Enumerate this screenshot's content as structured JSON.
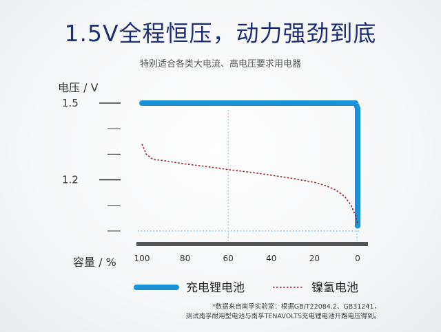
{
  "header": {
    "title": "1.5V全程恒压，动力强劲到底",
    "subtitle": "特别适合各类大电流、高电压要求用电器"
  },
  "footnote": {
    "line1": "*数据来自南孚实验室：根据GB/T22084.2、GB31241，",
    "line2": "测试南孚耐用型电池与南孚TENAVOLTS充电锂电池开路电压得到。"
  },
  "chart_data": {
    "type": "line",
    "ylabel": "电压 / V",
    "xlabel": "容量 / %",
    "x_reversed": true,
    "xlim": [
      100,
      0
    ],
    "x_ticks": [
      100,
      80,
      60,
      40,
      20,
      0
    ],
    "y_ticks": [
      {
        "value": 1.5,
        "label": "1.5"
      },
      {
        "value": 1.4,
        "label": ""
      },
      {
        "value": 1.3,
        "label": ""
      },
      {
        "value": 1.2,
        "label": "1.2"
      },
      {
        "value": 1.1,
        "label": ""
      },
      {
        "value": 1.0,
        "label": ""
      }
    ],
    "ylim": [
      0.95,
      1.55
    ],
    "grid": "dotted horizontal at 1.0 and vertical at 60 and 0",
    "legend_position": "bottom",
    "series": [
      {
        "name": "充电锂电池",
        "color": "#1a93d8",
        "style": "solid",
        "points": [
          [
            100,
            1.5
          ],
          [
            80,
            1.5
          ],
          [
            60,
            1.5
          ],
          [
            40,
            1.5
          ],
          [
            20,
            1.5
          ],
          [
            1,
            1.5
          ],
          [
            0,
            1.48
          ],
          [
            0,
            1.02
          ]
        ]
      },
      {
        "name": "镍氢电池",
        "color": "#a21d25",
        "style": "dotted",
        "points": [
          [
            100,
            1.34
          ],
          [
            98,
            1.3
          ],
          [
            95,
            1.28
          ],
          [
            90,
            1.275
          ],
          [
            80,
            1.262
          ],
          [
            70,
            1.252
          ],
          [
            60,
            1.24
          ],
          [
            50,
            1.23
          ],
          [
            40,
            1.218
          ],
          [
            30,
            1.205
          ],
          [
            20,
            1.19
          ],
          [
            15,
            1.178
          ],
          [
            10,
            1.16
          ],
          [
            6,
            1.135
          ],
          [
            3,
            1.1
          ],
          [
            1,
            1.06
          ],
          [
            0,
            1.03
          ]
        ]
      }
    ]
  }
}
